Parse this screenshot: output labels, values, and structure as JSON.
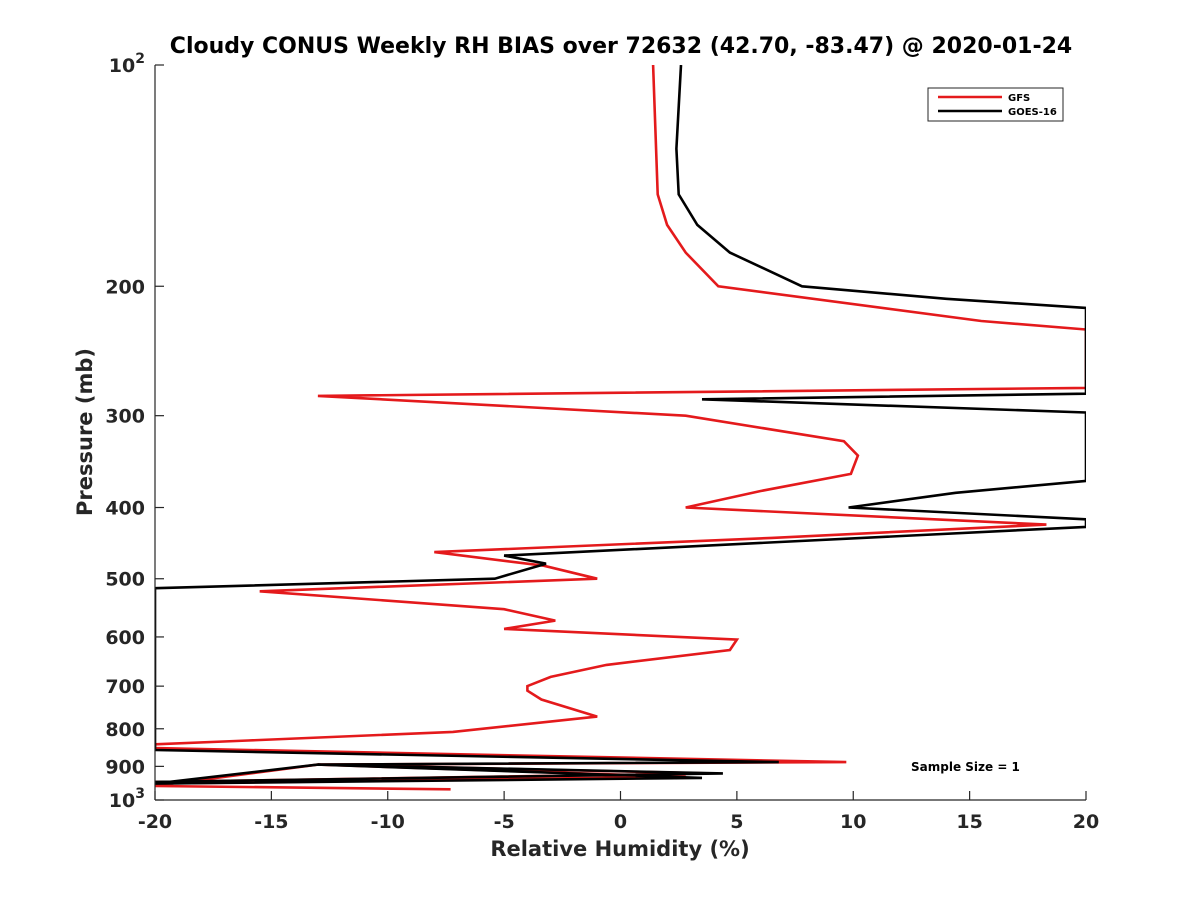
{
  "chart_data": {
    "type": "line",
    "title": "Cloudy CONUS Weekly RH BIAS over 72632 (42.70, -83.47) @ 2020-01-24",
    "xlabel": "Relative Humidity (%)",
    "ylabel": "Pressure (mb)",
    "xlim": [
      -20,
      20
    ],
    "ylim": [
      100,
      1000
    ],
    "yscale": "log",
    "y_reversed": true,
    "grid": false,
    "legend_position": "top-right",
    "x_ticks": [
      "-20",
      "-15",
      "-10",
      "-5",
      "0",
      "5",
      "10",
      "15",
      "20"
    ],
    "y_ticks": [
      {
        "value": 100,
        "base": "10",
        "exp": "2"
      },
      {
        "value": 200,
        "label": "200"
      },
      {
        "value": 300,
        "label": "300"
      },
      {
        "value": 400,
        "label": "400"
      },
      {
        "value": 500,
        "label": "500"
      },
      {
        "value": 600,
        "label": "600"
      },
      {
        "value": 700,
        "label": "700"
      },
      {
        "value": 800,
        "label": "800"
      },
      {
        "value": 900,
        "label": "900"
      },
      {
        "value": 1000,
        "base": "10",
        "exp": "3"
      }
    ],
    "annotation": "Sample Size = 1",
    "series": [
      {
        "name": "GFS",
        "color": "#e41a1c",
        "points": [
          [
            1.4,
            100
          ],
          [
            1.6,
            150
          ],
          [
            2.0,
            165
          ],
          [
            2.8,
            180
          ],
          [
            4.2,
            200
          ],
          [
            15.5,
            223
          ],
          [
            20,
            229
          ],
          [
            20,
            275
          ],
          [
            -13.0,
            282
          ],
          [
            2.8,
            300
          ],
          [
            9.6,
            325
          ],
          [
            10.2,
            340
          ],
          [
            9.9,
            360
          ],
          [
            6.0,
            380
          ],
          [
            2.8,
            400
          ],
          [
            18.3,
            422
          ],
          [
            6.5,
            440
          ],
          [
            -8.0,
            460
          ],
          [
            -3.3,
            480
          ],
          [
            -1.0,
            500
          ],
          [
            -15.5,
            520
          ],
          [
            -5.0,
            550
          ],
          [
            -2.8,
            570
          ],
          [
            -5.0,
            585
          ],
          [
            5.0,
            605
          ],
          [
            4.7,
            625
          ],
          [
            -0.6,
            655
          ],
          [
            -3.0,
            680
          ],
          [
            -4.0,
            700
          ],
          [
            -4.0,
            710
          ],
          [
            -3.4,
            730
          ],
          [
            -1.0,
            770
          ],
          [
            -7.2,
            808
          ],
          [
            -16.0,
            830
          ],
          [
            -20,
            840
          ],
          [
            -20,
            850
          ],
          [
            9.7,
            888
          ],
          [
            -13.0,
            895
          ],
          [
            3.8,
            920
          ],
          [
            -20,
            945
          ],
          [
            -20,
            950
          ],
          [
            2.8,
            930
          ],
          [
            -13.0,
            895
          ],
          [
            -20,
            957
          ],
          [
            -7.3,
            967
          ]
        ]
      },
      {
        "name": "GOES-16",
        "color": "#000000",
        "points": [
          [
            2.6,
            100
          ],
          [
            2.4,
            130
          ],
          [
            2.5,
            150
          ],
          [
            3.3,
            165
          ],
          [
            4.7,
            180
          ],
          [
            7.8,
            200
          ],
          [
            14.0,
            208
          ],
          [
            20,
            214
          ],
          [
            20,
            280
          ],
          [
            3.5,
            285
          ],
          [
            20,
            297
          ],
          [
            20,
            368
          ],
          [
            14.4,
            382
          ],
          [
            9.8,
            400
          ],
          [
            20,
            415
          ],
          [
            20,
            425
          ],
          [
            -5.0,
            465
          ],
          [
            -3.2,
            477
          ],
          [
            -5.4,
            500
          ],
          [
            -20,
            515
          ],
          [
            -20,
            855
          ],
          [
            6.8,
            888
          ],
          [
            -13.0,
            895
          ],
          [
            4.4,
            920
          ],
          [
            -20,
            945
          ],
          [
            -20,
            950
          ],
          [
            3.5,
            933
          ],
          [
            -13.0,
            895
          ],
          [
            -20,
            950
          ]
        ]
      }
    ]
  }
}
